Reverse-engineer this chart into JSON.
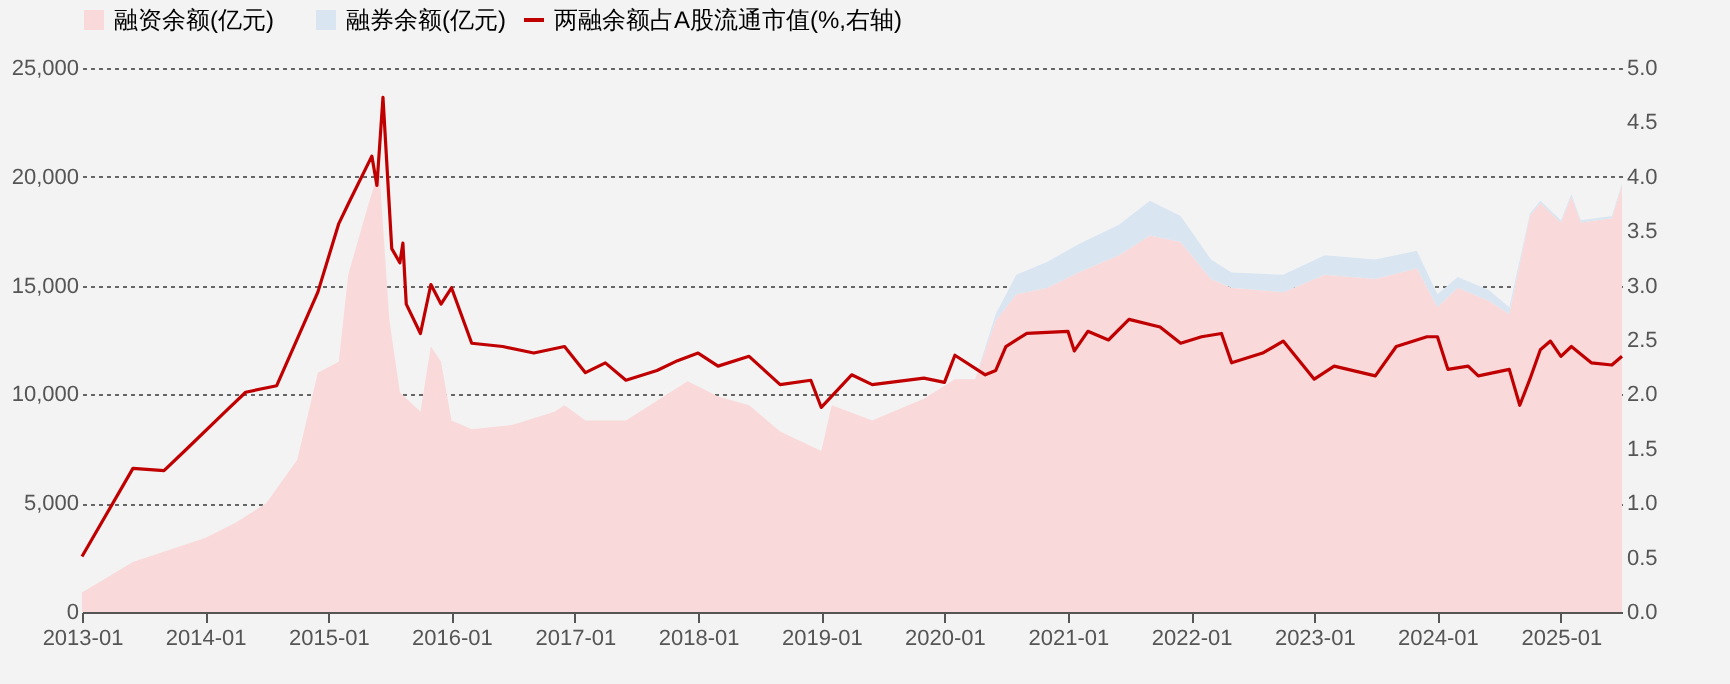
{
  "chart_data": {
    "type": "area",
    "stacked": true,
    "legend": "top",
    "grid": "y",
    "marker": "none",
    "x": [
      "2013-01",
      "2013-06",
      "2014-01",
      "2014-04",
      "2014-07",
      "2014-10",
      "2014-12",
      "2015-02",
      "2015-03",
      "2015-05",
      "2015-06",
      "2015-07",
      "2015-08",
      "2015-10",
      "2015-11",
      "2015-12",
      "2016-01",
      "2016-03",
      "2016-07",
      "2016-11",
      "2016-12",
      "2017-02",
      "2017-06",
      "2017-12",
      "2018-03",
      "2018-06",
      "2018-09",
      "2019-01",
      "2019-02",
      "2019-06",
      "2019-11",
      "2020-02",
      "2020-04",
      "2020-06",
      "2020-08",
      "2020-11",
      "2021-02",
      "2021-06",
      "2021-09",
      "2021-12",
      "2022-03",
      "2022-05",
      "2022-10",
      "2023-02",
      "2023-07",
      "2023-11",
      "2024-01",
      "2024-03",
      "2024-06",
      "2024-08",
      "2024-10",
      "2024-11",
      "2025-01",
      "2025-02",
      "2025-03",
      "2025-06",
      "2025-07"
    ],
    "series": [
      {
        "name": "融资余额(亿元)",
        "color": "#f9d9d9",
        "values": [
          900,
          2300,
          3400,
          4100,
          5000,
          7000,
          11000,
          11500,
          15500,
          18800,
          20300,
          13400,
          10100,
          9200,
          12200,
          11500,
          8800,
          8400,
          8600,
          9200,
          9500,
          8800,
          8800,
          10600,
          9900,
          9500,
          8300,
          7400,
          9500,
          8800,
          9800,
          10700,
          10700,
          13400,
          14600,
          14900,
          15600,
          16400,
          17300,
          17000,
          15300,
          14900,
          14700,
          15500,
          15300,
          15800,
          14000,
          14900,
          14300,
          13700,
          18200,
          18800,
          17900,
          19100,
          17900,
          18100,
          19600
        ]
      },
      {
        "name": "融券余额(亿元)",
        "color": "#d9e6f2",
        "values": [
          0,
          0,
          0,
          0,
          0,
          0,
          0,
          0,
          0,
          0,
          0,
          0,
          0,
          0,
          0,
          0,
          0,
          0,
          0,
          0,
          0,
          0,
          0,
          0,
          0,
          0,
          0,
          0,
          0,
          0,
          0,
          0,
          0,
          300,
          900,
          1200,
          1300,
          1400,
          1600,
          1200,
          900,
          700,
          800,
          900,
          900,
          800,
          600,
          500,
          500,
          300,
          100,
          100,
          100,
          100,
          100,
          100,
          100
        ]
      },
      {
        "name": "两融余额占A股流通市值(%,右轴)",
        "type": "line",
        "axis": "y2",
        "color": "#c00000",
        "line_style": "solid",
        "x": [
          "2013-01",
          "2013-06",
          "2013-09",
          "2013-11",
          "2014-03",
          "2014-05",
          "2014-08",
          "2014-12",
          "2015-02",
          "2015-03",
          "2015-05-10",
          "2015-05-25",
          "2015-06-12",
          "2015-07-08",
          "2015-08-01",
          "2015-08-10",
          "2015-08-20",
          "2015-10",
          "2015-11",
          "2015-12",
          "2016-01",
          "2016-03",
          "2016-06",
          "2016-09",
          "2016-12",
          "2017-02",
          "2017-04",
          "2017-06",
          "2017-09",
          "2017-11",
          "2018-01",
          "2018-03",
          "2018-06",
          "2018-09",
          "2018-12",
          "2019-01",
          "2019-04",
          "2019-06",
          "2019-11",
          "2020-01",
          "2020-02",
          "2020-05",
          "2020-06",
          "2020-07",
          "2020-09",
          "2021-01",
          "2021-01-20",
          "2021-03",
          "2021-05",
          "2021-07",
          "2021-10",
          "2021-12",
          "2022-02",
          "2022-04",
          "2022-05",
          "2022-08",
          "2022-10",
          "2023-01",
          "2023-03",
          "2023-07",
          "2023-09",
          "2023-12",
          "2024-01",
          "2024-02",
          "2024-04",
          "2024-05",
          "2024-08",
          "2024-09",
          "2024-10",
          "2024-11",
          "2024-12",
          "2025-01",
          "2025-02",
          "2025-04",
          "2025-06",
          "2025-07"
        ],
        "values": [
          0.51,
          1.32,
          1.3,
          1.48,
          1.84,
          2.02,
          2.08,
          2.94,
          3.57,
          3.75,
          4.19,
          3.92,
          4.73,
          3.34,
          3.21,
          3.39,
          2.83,
          2.56,
          3.01,
          2.83,
          2.98,
          2.47,
          2.44,
          2.38,
          2.44,
          2.2,
          2.29,
          2.13,
          2.22,
          2.31,
          2.38,
          2.26,
          2.35,
          2.09,
          2.13,
          1.88,
          2.18,
          2.09,
          2.15,
          2.11,
          2.36,
          2.18,
          2.22,
          2.44,
          2.56,
          2.58,
          2.4,
          2.58,
          2.5,
          2.69,
          2.62,
          2.47,
          2.53,
          2.56,
          2.29,
          2.38,
          2.49,
          2.14,
          2.26,
          2.17,
          2.44,
          2.53,
          2.53,
          2.23,
          2.26,
          2.17,
          2.23,
          1.9,
          2.14,
          2.41,
          2.49,
          2.35,
          2.44,
          2.29,
          2.27,
          2.35
        ]
      }
    ],
    "xlim": [
      "2013-01",
      "2025-07"
    ],
    "xticks": [
      "2013-01",
      "2014-01",
      "2015-01",
      "2016-01",
      "2017-01",
      "2018-01",
      "2019-01",
      "2020-01",
      "2021-01",
      "2022-01",
      "2023-01",
      "2024-01",
      "2025-01"
    ],
    "ylim": [
      0,
      25000
    ],
    "yticks": [
      {
        "value": 0,
        "label": "0"
      },
      {
        "value": 5000,
        "label": "5,000"
      },
      {
        "value": 10000,
        "label": "10,000"
      },
      {
        "value": 15000,
        "label": "15,000"
      },
      {
        "value": 20000,
        "label": "20,000"
      },
      {
        "value": 25000,
        "label": "25,000"
      }
    ],
    "y2lim": [
      0,
      5
    ],
    "y2ticks": [
      {
        "value": 0,
        "label": "0.0"
      },
      {
        "value": 0.5,
        "label": "0.5"
      },
      {
        "value": 1,
        "label": "1.0"
      },
      {
        "value": 1.5,
        "label": "1.5"
      },
      {
        "value": 2,
        "label": "2.0"
      },
      {
        "value": 2.5,
        "label": "2.5"
      },
      {
        "value": 3,
        "label": "3.0"
      },
      {
        "value": 3.5,
        "label": "3.5"
      },
      {
        "value": 4,
        "label": "4.0"
      },
      {
        "value": 4.5,
        "label": "4.5"
      },
      {
        "value": 5,
        "label": "5.0"
      }
    ]
  }
}
